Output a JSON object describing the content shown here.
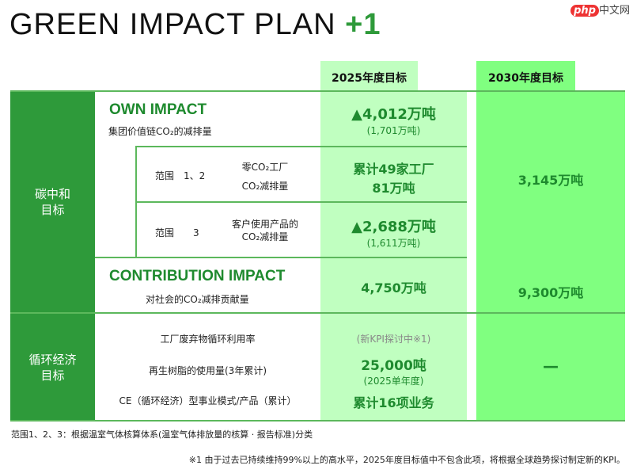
{
  "title": {
    "main": "GREEN IMPACT PLAN",
    "plus": "+1"
  },
  "watermark": "中文网",
  "watermark_badge": "php",
  "headers": {
    "y2025": "2025年度目标",
    "y2030": "2030年度目标"
  },
  "carbon": {
    "label_l1": "碳中和",
    "label_l2": "目标",
    "own": {
      "title": "OWN IMPACT",
      "desc": "集团价值链CO₂的减排量",
      "v2025": "▲4,012万吨",
      "v2025_sub": "(1,701万吨)"
    },
    "scope12": {
      "scope": "范围　1、2",
      "item1": "零CO₂工厂",
      "item2": "CO₂减排量",
      "v1": "累计49家工厂",
      "v2": "81万吨"
    },
    "scope3": {
      "scope": "范围　　3",
      "item1": "客户使用产品的",
      "item2": "CO₂减排量",
      "v2025": "▲2,688万吨",
      "v2025_sub": "(1,611万吨)"
    },
    "v2030": "3,145万吨",
    "contribution": {
      "title": "CONTRIBUTION IMPACT",
      "desc": "对社会的CO₂减排贡献量",
      "v2025": "4,750万吨",
      "v2030": "9,300万吨"
    }
  },
  "circular": {
    "label_l1": "循环经济",
    "label_l2": "目标",
    "rows": [
      {
        "label": "工厂废弃物循环利用率",
        "value": "(新KPI探讨中※1)"
      },
      {
        "label": "再生树脂的使用量(3年累计)",
        "value": "25,000吨",
        "sub": "(2025单年度)"
      },
      {
        "label": "CE（循环经济）型事业模式/产品（累计）",
        "value": "累计16项业务"
      }
    ],
    "v2030": "—"
  },
  "notes": {
    "scope": "范围1、2、3：根据温室气体核算体系(温室气体排放量的核算 · 报告标准)分类",
    "footnote": "※1 由于过去已持续维持99%以上的高水平，2025年度目标值中不包含此项，将根据全球趋势探讨制定新的KPI。"
  },
  "colors": {
    "brand_green": "#2e9a3a",
    "col2025": "#c0ffc0",
    "col2030": "#80ff80"
  }
}
